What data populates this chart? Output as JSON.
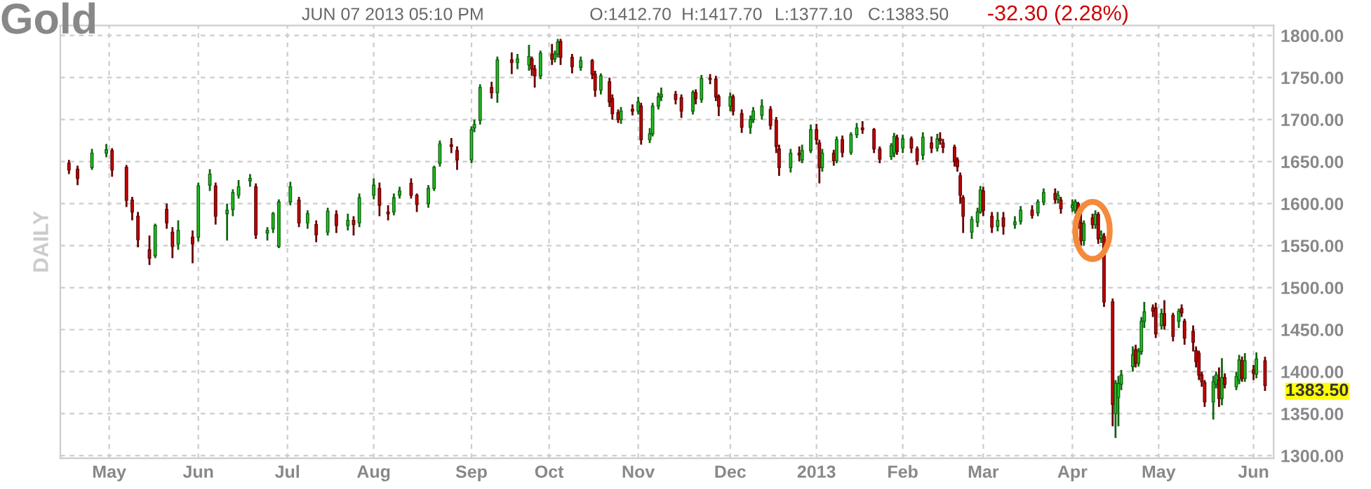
{
  "chart_data": {
    "type": "candlestick",
    "title": "Gold",
    "subtitle": "JUN 07 2013 05:10 PM",
    "ylabel": "DAILY",
    "annotations": [
      "O:1412.70",
      "H:1417.70",
      "L:1377.10",
      "C:1383.50",
      "-32.30 (2.28%)",
      "1383.50"
    ],
    "colors": [
      "#cc0000",
      "#cc0000",
      "#22c222",
      "#22c222",
      "#cc0000",
      "#cc0000",
      "#cc0000",
      "#cc0000",
      "#cc0000",
      "#22c222",
      "#cc0000",
      "#cc0000",
      "#22c222",
      "#cc0000",
      "#22c222",
      "#22c222",
      "#cc0000",
      "#22c222",
      "#22c222",
      "#22c222",
      "#22c222",
      "#cc0000",
      "#22c222",
      "#22c222",
      "#22c222",
      "#22c222",
      "#cc0000",
      "#22c222",
      "#cc0000",
      "#22c222",
      "#cc0000",
      "#22c222",
      "#cc0000",
      "#22c222",
      "#22c222",
      "#cc0000",
      "#cc0000",
      "#22c222",
      "#22c222",
      "#cc0000",
      "#cc0000",
      "#22c222",
      "#22c222",
      "#22c222",
      "#cc0000",
      "#cc0000",
      "#22c222",
      "#22c222",
      "#22c222",
      "#cc0000",
      "#22c222",
      "#cc0000",
      "#22c222",
      "#22c222",
      "#cc0000",
      "#cc0000",
      "#22c222",
      "#cc0000",
      "#22c222",
      "#22c222",
      "#cc0000",
      "#cc0000",
      "#22c222",
      "#cc0000",
      "#cc0000",
      "#22c222",
      "#cc0000",
      "#cc0000",
      "#cc0000",
      "#22c222",
      "#cc0000",
      "#22c222",
      "#cc0000",
      "#22c222",
      "#22c222",
      "#22c222",
      "#22c222",
      "#cc0000",
      "#cc0000",
      "#22c222",
      "#cc0000",
      "#22c222",
      "#cc0000",
      "#cc0000",
      "#cc0000",
      "#22c222",
      "#cc0000",
      "#cc0000",
      "#22c222",
      "#22c222",
      "#22c222",
      "#cc0000",
      "#cc0000",
      "#cc0000",
      "#22c222",
      "#cc0000",
      "#22c222",
      "#22c222",
      "#cc0000",
      "#cc0000",
      "#22c222",
      "#cc0000",
      "#22c222",
      "#cc0000",
      "#22c222",
      "#22c222",
      "#cc0000",
      "#cc0000",
      "#cc0000",
      "#22c222",
      "#22c222",
      "#cc0000",
      "#22c222",
      "#cc0000",
      "#cc0000",
      "#22c222",
      "#cc0000",
      "#22c222",
      "#cc0000",
      "#cc0000",
      "#cc0000",
      "#cc0000",
      "#cc0000",
      "#cc0000",
      "#22c222",
      "#22c222",
      "#22c222",
      "#cc0000",
      "#cc0000",
      "#22c222",
      "#cc0000",
      "#22c222",
      "#22c222",
      "#cc0000",
      "#22c222",
      "#22c222",
      "#cc0000",
      "#22c222",
      "#cc0000",
      "#22c222",
      "#22c222",
      "#cc0000",
      "#cc0000",
      "#22c222",
      "#cc0000",
      "#22c222",
      "#cc0000",
      "#22c222",
      "#cc0000",
      "#cc0000",
      "#22c222",
      "#22c222",
      "#22c222",
      "#22c222",
      "#cc0000",
      "#22c222",
      "#22c222",
      "#22c222",
      "#cc0000",
      "#cc0000",
      "#22c222",
      "#cc0000",
      "#cc0000",
      "#22c222",
      "#cc0000",
      "#cc0000",
      "#cc0000",
      "#cc0000",
      "#cc0000",
      "#cc0000",
      "#cc0000",
      "#22c222",
      "#22c222",
      "#cc0000",
      "#22c222",
      "#cc0000",
      "#22c222",
      "#22c222",
      "#cc0000",
      "#22c222",
      "#cc0000",
      "#22c222",
      "#cc0000"
    ],
    "grid": true,
    "xlim": [
      "2012-04-14",
      "2013-06-10"
    ],
    "xticks": [
      {
        "value": "2012-05-01",
        "label": "May"
      },
      {
        "value": "2012-06-01",
        "label": "Jun"
      },
      {
        "value": "2012-07-02",
        "label": "Jul"
      },
      {
        "value": "2012-08-01",
        "label": "Aug"
      },
      {
        "value": "2012-09-04",
        "label": "Sep"
      },
      {
        "value": "2012-10-01",
        "label": "Oct"
      },
      {
        "value": "2012-11-01",
        "label": "Nov"
      },
      {
        "value": "2012-12-03",
        "label": "Dec"
      },
      {
        "value": "2013-01-02",
        "label": "2013"
      },
      {
        "value": "2013-02-01",
        "label": "Feb"
      },
      {
        "value": "2013-03-01",
        "label": "Mar"
      },
      {
        "value": "2013-04-01",
        "label": "Apr"
      },
      {
        "value": "2013-05-01",
        "label": "May"
      },
      {
        "value": "2013-06-03",
        "label": "Jun"
      }
    ],
    "ylim": [
      1297,
      1812
    ],
    "yticks": [
      {
        "value": 1300,
        "label": "1300.00"
      },
      {
        "value": 1350,
        "label": "1350.00"
      },
      {
        "value": 1400,
        "label": "1400.00"
      },
      {
        "value": 1450,
        "label": "1450.00"
      },
      {
        "value": 1500,
        "label": "1500.00"
      },
      {
        "value": 1550,
        "label": "1550.00"
      },
      {
        "value": 1600,
        "label": "1600.00"
      },
      {
        "value": 1650,
        "label": "1650.00"
      },
      {
        "value": 1700,
        "label": "1700.00"
      },
      {
        "value": 1750,
        "label": "1750.00"
      },
      {
        "value": 1800,
        "label": "1800.00"
      }
    ],
    "x": [
      "2012-04-17",
      "2012-04-20",
      "2012-04-25",
      "2012-04-30",
      "2012-05-02",
      "2012-05-07",
      "2012-05-09",
      "2012-05-11",
      "2012-05-15",
      "2012-05-17",
      "2012-05-21",
      "2012-05-23",
      "2012-05-25",
      "2012-05-30",
      "2012-06-01",
      "2012-06-05",
      "2012-06-07",
      "2012-06-11",
      "2012-06-13",
      "2012-06-15",
      "2012-06-19",
      "2012-06-21",
      "2012-06-25",
      "2012-06-27",
      "2012-06-29",
      "2012-07-03",
      "2012-07-06",
      "2012-07-09",
      "2012-07-12",
      "2012-07-16",
      "2012-07-19",
      "2012-07-23",
      "2012-07-25",
      "2012-07-27",
      "2012-08-01",
      "2012-08-03",
      "2012-08-06",
      "2012-08-08",
      "2012-08-10",
      "2012-08-14",
      "2012-08-16",
      "2012-08-20",
      "2012-08-22",
      "2012-08-24",
      "2012-08-28",
      "2012-08-30",
      "2012-09-04",
      "2012-09-05",
      "2012-09-07",
      "2012-09-11",
      "2012-09-13",
      "2012-09-18",
      "2012-09-20",
      "2012-09-24",
      "2012-09-25",
      "2012-09-26",
      "2012-09-28",
      "2012-10-02",
      "2012-10-03",
      "2012-10-04",
      "2012-10-05",
      "2012-10-09",
      "2012-10-12",
      "2012-10-16",
      "2012-10-17",
      "2012-10-19",
      "2012-10-22",
      "2012-10-23",
      "2012-10-25",
      "2012-10-26",
      "2012-10-30",
      "2012-11-01",
      "2012-11-02",
      "2012-11-05",
      "2012-11-06",
      "2012-11-08",
      "2012-11-09",
      "2012-11-14",
      "2012-11-16",
      "2012-11-20",
      "2012-11-21",
      "2012-11-23",
      "2012-11-26",
      "2012-11-28",
      "2012-11-29",
      "2012-12-03",
      "2012-12-04",
      "2012-12-07",
      "2012-12-10",
      "2012-12-11",
      "2012-12-14",
      "2012-12-17",
      "2012-12-19",
      "2012-12-20",
      "2012-12-24",
      "2012-12-27",
      "2012-12-28",
      "2012-12-31",
      "2013-01-02",
      "2013-01-03",
      "2013-01-04",
      "2013-01-08",
      "2013-01-09",
      "2013-01-11",
      "2013-01-14",
      "2013-01-16",
      "2013-01-18",
      "2013-01-22",
      "2013-01-24",
      "2013-01-28",
      "2013-01-29",
      "2013-01-30",
      "2013-02-01",
      "2013-02-04",
      "2013-02-06",
      "2013-02-08",
      "2013-02-11",
      "2013-02-13",
      "2013-02-14",
      "2013-02-15",
      "2013-02-19",
      "2013-02-20",
      "2013-02-21",
      "2013-02-22",
      "2013-02-25",
      "2013-02-27",
      "2013-02-28",
      "2013-03-01",
      "2013-03-04",
      "2013-03-06",
      "2013-03-08",
      "2013-03-12",
      "2013-03-14",
      "2013-03-18",
      "2013-03-20",
      "2013-03-22",
      "2013-03-26",
      "2013-03-27",
      "2013-03-28",
      "2013-04-01",
      "2013-04-02",
      "2013-04-03",
      "2013-04-04",
      "2013-04-05",
      "2013-04-08",
      "2013-04-09",
      "2013-04-10",
      "2013-04-11",
      "2013-04-12",
      "2013-04-15",
      "2013-04-16",
      "2013-04-17",
      "2013-04-18",
      "2013-04-22",
      "2013-04-23",
      "2013-04-24",
      "2013-04-25",
      "2013-04-26",
      "2013-04-29",
      "2013-04-30",
      "2013-05-02",
      "2013-05-03",
      "2013-05-06",
      "2013-05-08",
      "2013-05-09",
      "2013-05-10",
      "2013-05-13",
      "2013-05-14",
      "2013-05-15",
      "2013-05-16",
      "2013-05-17",
      "2013-05-20",
      "2013-05-21",
      "2013-05-22",
      "2013-05-23",
      "2013-05-24",
      "2013-05-28",
      "2013-05-29",
      "2013-05-30",
      "2013-05-31",
      "2013-06-03",
      "2013-06-04",
      "2013-06-07"
    ],
    "ohlc": [
      [
        1648,
        1652,
        1635,
        1640
      ],
      [
        1641,
        1645,
        1622,
        1630
      ],
      [
        1643,
        1665,
        1640,
        1660
      ],
      [
        1660,
        1671,
        1655,
        1664
      ],
      [
        1663,
        1666,
        1632,
        1640
      ],
      [
        1643,
        1646,
        1596,
        1604
      ],
      [
        1604,
        1608,
        1580,
        1590
      ],
      [
        1585,
        1590,
        1548,
        1557
      ],
      [
        1545,
        1562,
        1527,
        1535
      ],
      [
        1538,
        1576,
        1535,
        1574
      ],
      [
        1593,
        1600,
        1570,
        1577
      ],
      [
        1566,
        1572,
        1535,
        1549
      ],
      [
        1552,
        1580,
        1545,
        1568
      ],
      [
        1560,
        1568,
        1529,
        1552
      ],
      [
        1560,
        1625,
        1555,
        1621
      ],
      [
        1622,
        1641,
        1615,
        1635
      ],
      [
        1621,
        1625,
        1575,
        1585
      ],
      [
        1588,
        1600,
        1556,
        1592
      ],
      [
        1593,
        1617,
        1585,
        1613
      ],
      [
        1610,
        1628,
        1606,
        1620
      ],
      [
        1627,
        1635,
        1620,
        1630
      ],
      [
        1620,
        1624,
        1558,
        1563
      ],
      [
        1565,
        1572,
        1556,
        1568
      ],
      [
        1570,
        1590,
        1565,
        1588
      ],
      [
        1549,
        1605,
        1547,
        1602
      ],
      [
        1602,
        1626,
        1598,
        1620
      ],
      [
        1604,
        1608,
        1572,
        1577
      ],
      [
        1577,
        1592,
        1570,
        1588
      ],
      [
        1575,
        1580,
        1554,
        1563
      ],
      [
        1566,
        1595,
        1562,
        1591
      ],
      [
        1587,
        1592,
        1565,
        1574
      ],
      [
        1574,
        1588,
        1568,
        1580
      ],
      [
        1580,
        1585,
        1562,
        1575
      ],
      [
        1577,
        1612,
        1572,
        1607
      ],
      [
        1610,
        1630,
        1605,
        1622
      ],
      [
        1618,
        1625,
        1585,
        1598
      ],
      [
        1590,
        1598,
        1580,
        1588
      ],
      [
        1590,
        1612,
        1586,
        1607
      ],
      [
        1610,
        1620,
        1606,
        1615
      ],
      [
        1624,
        1630,
        1606,
        1610
      ],
      [
        1610,
        1612,
        1590,
        1599
      ],
      [
        1600,
        1622,
        1595,
        1618
      ],
      [
        1618,
        1645,
        1615,
        1643
      ],
      [
        1648,
        1675,
        1644,
        1671
      ],
      [
        1670,
        1678,
        1660,
        1668
      ],
      [
        1663,
        1668,
        1640,
        1652
      ],
      [
        1652,
        1692,
        1648,
        1688
      ],
      [
        1690,
        1700,
        1685,
        1694
      ],
      [
        1699,
        1742,
        1694,
        1738
      ],
      [
        1738,
        1745,
        1725,
        1732
      ],
      [
        1732,
        1775,
        1720,
        1771
      ],
      [
        1771,
        1780,
        1754,
        1768
      ],
      [
        1768,
        1778,
        1760,
        1772
      ],
      [
        1765,
        1789,
        1758,
        1775
      ],
      [
        1772,
        1775,
        1752,
        1760
      ],
      [
        1760,
        1765,
        1738,
        1752
      ],
      [
        1752,
        1782,
        1748,
        1779
      ],
      [
        1778,
        1790,
        1765,
        1772
      ],
      [
        1772,
        1782,
        1768,
        1778
      ],
      [
        1778,
        1796,
        1774,
        1792
      ],
      [
        1793,
        1796,
        1765,
        1774
      ],
      [
        1774,
        1778,
        1755,
        1763
      ],
      [
        1762,
        1775,
        1758,
        1770
      ],
      [
        1770,
        1772,
        1748,
        1754
      ],
      [
        1754,
        1758,
        1727,
        1735
      ],
      [
        1735,
        1755,
        1730,
        1752
      ],
      [
        1745,
        1750,
        1715,
        1721
      ],
      [
        1725,
        1730,
        1700,
        1707
      ],
      [
        1708,
        1712,
        1696,
        1700
      ],
      [
        1700,
        1715,
        1695,
        1710
      ],
      [
        1712,
        1718,
        1705,
        1710
      ],
      [
        1710,
        1727,
        1706,
        1721
      ],
      [
        1716,
        1720,
        1670,
        1676
      ],
      [
        1676,
        1690,
        1672,
        1683
      ],
      [
        1683,
        1720,
        1680,
        1716
      ],
      [
        1716,
        1732,
        1712,
        1727
      ],
      [
        1727,
        1738,
        1722,
        1730
      ],
      [
        1730,
        1734,
        1718,
        1724
      ],
      [
        1726,
        1730,
        1702,
        1710
      ],
      [
        1710,
        1735,
        1706,
        1732
      ],
      [
        1732,
        1736,
        1718,
        1725
      ],
      [
        1724,
        1753,
        1720,
        1749
      ],
      [
        1749,
        1754,
        1742,
        1748
      ],
      [
        1748,
        1752,
        1722,
        1727
      ],
      [
        1727,
        1730,
        1704,
        1716
      ],
      [
        1716,
        1732,
        1710,
        1727
      ],
      [
        1727,
        1730,
        1705,
        1710
      ],
      [
        1707,
        1712,
        1684,
        1691
      ],
      [
        1691,
        1705,
        1683,
        1700
      ],
      [
        1700,
        1715,
        1696,
        1710
      ],
      [
        1705,
        1724,
        1700,
        1716
      ],
      [
        1712,
        1716,
        1688,
        1693
      ],
      [
        1699,
        1703,
        1660,
        1668
      ],
      [
        1665,
        1670,
        1633,
        1643
      ],
      [
        1643,
        1665,
        1637,
        1660
      ],
      [
        1660,
        1668,
        1650,
        1658
      ],
      [
        1652,
        1670,
        1648,
        1663
      ],
      [
        1663,
        1694,
        1660,
        1688
      ],
      [
        1688,
        1695,
        1670,
        1676
      ],
      [
        1672,
        1676,
        1624,
        1643
      ],
      [
        1643,
        1665,
        1638,
        1660
      ],
      [
        1660,
        1664,
        1645,
        1651
      ],
      [
        1651,
        1680,
        1648,
        1676
      ],
      [
        1676,
        1681,
        1655,
        1661
      ],
      [
        1661,
        1685,
        1658,
        1682
      ],
      [
        1682,
        1696,
        1678,
        1690
      ],
      [
        1690,
        1698,
        1683,
        1688
      ],
      [
        1688,
        1690,
        1660,
        1665
      ],
      [
        1665,
        1668,
        1648,
        1653
      ],
      [
        1656,
        1672,
        1652,
        1669
      ],
      [
        1660,
        1684,
        1655,
        1680
      ],
      [
        1678,
        1682,
        1658,
        1662
      ],
      [
        1666,
        1682,
        1660,
        1677
      ],
      [
        1677,
        1680,
        1660,
        1666
      ],
      [
        1665,
        1668,
        1646,
        1651
      ],
      [
        1658,
        1685,
        1652,
        1679
      ],
      [
        1672,
        1680,
        1660,
        1666
      ],
      [
        1666,
        1683,
        1662,
        1677
      ],
      [
        1677,
        1685,
        1670,
        1675
      ],
      [
        1672,
        1677,
        1660,
        1667
      ],
      [
        1667,
        1670,
        1644,
        1650
      ],
      [
        1652,
        1655,
        1638,
        1644
      ],
      [
        1633,
        1637,
        1600,
        1610
      ],
      [
        1607,
        1610,
        1565,
        1585
      ],
      [
        1566,
        1585,
        1558,
        1581
      ],
      [
        1578,
        1595,
        1572,
        1590
      ],
      [
        1590,
        1621,
        1588,
        1616
      ],
      [
        1615,
        1620,
        1585,
        1592
      ],
      [
        1585,
        1590,
        1565,
        1572
      ],
      [
        1573,
        1590,
        1567,
        1580
      ],
      [
        1583,
        1590,
        1563,
        1573
      ],
      [
        1575,
        1585,
        1570,
        1578
      ],
      [
        1579,
        1597,
        1575,
        1592
      ],
      [
        1592,
        1598,
        1582,
        1586
      ],
      [
        1589,
        1605,
        1585,
        1602
      ],
      [
        1602,
        1618,
        1598,
        1613
      ],
      [
        1612,
        1618,
        1600,
        1605
      ],
      [
        1605,
        1615,
        1600,
        1610
      ],
      [
        1604,
        1608,
        1588,
        1594
      ],
      [
        1595,
        1605,
        1590,
        1598
      ],
      [
        1592,
        1605,
        1588,
        1602
      ],
      [
        1600,
        1602,
        1570,
        1577
      ],
      [
        1577,
        1590,
        1550,
        1556
      ],
      [
        1556,
        1580,
        1550,
        1576
      ],
      [
        1583,
        1588,
        1570,
        1575
      ],
      [
        1575,
        1592,
        1570,
        1587
      ],
      [
        1587,
        1590,
        1552,
        1558
      ],
      [
        1559,
        1568,
        1553,
        1563
      ],
      [
        1561,
        1565,
        1477,
        1483
      ],
      [
        1483,
        1487,
        1335,
        1361
      ],
      [
        1350,
        1390,
        1321,
        1386
      ],
      [
        1369,
        1395,
        1335,
        1386
      ],
      [
        1385,
        1402,
        1378,
        1396
      ],
      [
        1406,
        1430,
        1400,
        1420
      ],
      [
        1426,
        1432,
        1405,
        1410
      ],
      [
        1410,
        1428,
        1406,
        1424
      ],
      [
        1424,
        1465,
        1420,
        1460
      ],
      [
        1460,
        1483,
        1452,
        1471
      ],
      [
        1476,
        1480,
        1465,
        1472
      ],
      [
        1476,
        1482,
        1440,
        1445
      ],
      [
        1455,
        1475,
        1450,
        1469
      ],
      [
        1469,
        1485,
        1450,
        1455
      ],
      [
        1467,
        1470,
        1436,
        1442
      ],
      [
        1460,
        1475,
        1452,
        1472
      ],
      [
        1475,
        1480,
        1465,
        1470
      ],
      [
        1460,
        1463,
        1432,
        1440
      ],
      [
        1448,
        1455,
        1424,
        1435
      ],
      [
        1425,
        1430,
        1405,
        1412
      ],
      [
        1422,
        1425,
        1390,
        1396
      ],
      [
        1396,
        1400,
        1382,
        1388
      ],
      [
        1387,
        1390,
        1358,
        1364
      ],
      [
        1364,
        1395,
        1343,
        1388
      ],
      [
        1385,
        1400,
        1380,
        1396
      ],
      [
        1390,
        1405,
        1358,
        1368
      ],
      [
        1368,
        1416,
        1360,
        1393
      ],
      [
        1393,
        1398,
        1380,
        1385
      ],
      [
        1382,
        1400,
        1378,
        1394
      ],
      [
        1390,
        1420,
        1385,
        1414
      ],
      [
        1413,
        1418,
        1388,
        1392
      ],
      [
        1392,
        1422,
        1388,
        1413
      ],
      [
        1402,
        1408,
        1390,
        1398
      ],
      [
        1397,
        1423,
        1392,
        1415
      ],
      [
        1412.7,
        1417.7,
        1377.1,
        1383.5
      ]
    ]
  }
}
